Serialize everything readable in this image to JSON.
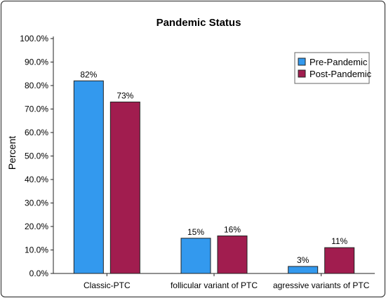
{
  "chart_data": {
    "type": "bar",
    "title": "Pandemic Status",
    "xlabel": "",
    "ylabel": "Percent",
    "ylim": [
      0,
      100
    ],
    "yticks": [
      "0.0%",
      "10.0%",
      "20.0%",
      "30.0%",
      "40.0%",
      "50.0%",
      "60.0%",
      "70.0%",
      "80.0%",
      "90.0%",
      "100.0%"
    ],
    "categories": [
      "Classic-PTC",
      "follicular variant of PTC",
      "agressive variants of PTC"
    ],
    "series": [
      {
        "name": "Pre-Pandemic",
        "color": "#3399ee",
        "values": [
          82,
          15,
          3
        ],
        "labels": [
          "82%",
          "15%",
          "3%"
        ]
      },
      {
        "name": "Post-Pandemic",
        "color": "#a11d4f",
        "values": [
          73,
          16,
          11
        ],
        "labels": [
          "73%",
          "16%",
          "11%"
        ]
      }
    ],
    "legend_position": "top-right",
    "grid": false
  }
}
